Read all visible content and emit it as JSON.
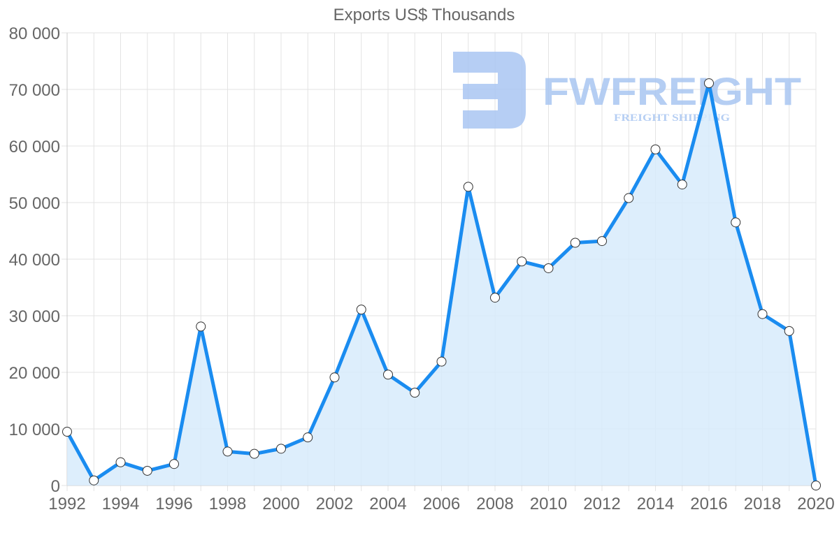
{
  "chart_data": {
    "type": "line",
    "title": "Exports US$ Thousands",
    "xlabel": "",
    "ylabel": "",
    "x": [
      1992,
      1993,
      1994,
      1995,
      1996,
      1997,
      1998,
      1999,
      2000,
      2001,
      2002,
      2003,
      2004,
      2005,
      2006,
      2007,
      2008,
      2009,
      2010,
      2011,
      2012,
      2013,
      2014,
      2015,
      2016,
      2017,
      2018,
      2019,
      2020
    ],
    "series": [
      {
        "name": "Exports US$ Thousands",
        "values": [
          9500,
          900,
          4100,
          2600,
          3800,
          28100,
          6000,
          5600,
          6500,
          8500,
          19100,
          31100,
          19600,
          16400,
          21900,
          52800,
          33200,
          39600,
          38400,
          42900,
          43200,
          50800,
          59400,
          53200,
          71100,
          46500,
          30300,
          27300,
          0
        ],
        "fill": true
      }
    ],
    "ylim": [
      0,
      80000
    ],
    "xlim": [
      1992,
      2020
    ],
    "y_ticks": [
      "0",
      "10 000",
      "20 000",
      "30 000",
      "40 000",
      "50 000",
      "60 000",
      "70 000",
      "80 000"
    ],
    "x_ticks": [
      "1992",
      "1994",
      "1996",
      "1998",
      "2000",
      "2002",
      "2004",
      "2006",
      "2008",
      "2010",
      "2012",
      "2014",
      "2016",
      "2018",
      "2020"
    ],
    "grid": true,
    "legend": "none",
    "colors": {
      "line": "#1a8cf0",
      "fill": "#d7ebfc",
      "grid": "#e3e3e3",
      "marker_fill": "#ffffff",
      "marker_stroke": "#333333"
    }
  },
  "watermark": {
    "brand": "FWFREIGHT",
    "tagline": "FREIGHT SHIPPING",
    "color": "#a9c6f2"
  }
}
